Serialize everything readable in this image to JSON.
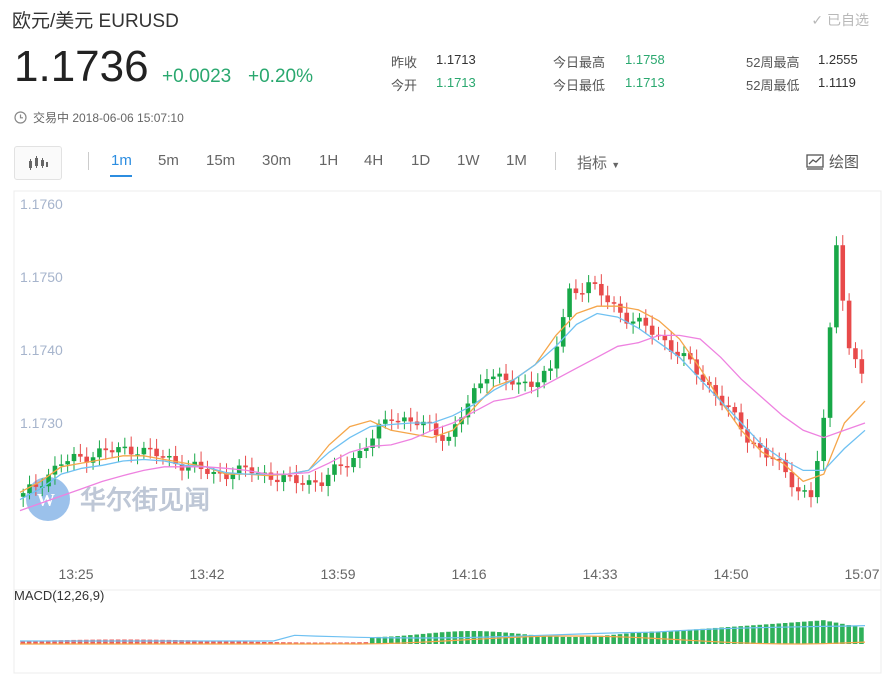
{
  "header": {
    "title": "欧元/美元 EURUSD",
    "selfpick_label": "已自选",
    "price": "1.1736",
    "change": "+0.0023",
    "change_pct": "+0.20%",
    "status": "交易中 2018-06-06 15:07:10"
  },
  "stats": {
    "prev_close_label": "昨收",
    "prev_close": "1.1713",
    "open_label": "今开",
    "open": "1.1713",
    "day_high_label": "今日最高",
    "day_high": "1.1758",
    "day_low_label": "今日最低",
    "day_low": "1.1713",
    "wk52_high_label": "52周最高",
    "wk52_high": "1.2555",
    "wk52_low_label": "52周最低",
    "wk52_low": "1.1119"
  },
  "toolbar": {
    "timeframes": [
      "1m",
      "5m",
      "15m",
      "30m",
      "1H",
      "4H",
      "1D",
      "1W",
      "1M"
    ],
    "active_timeframe": "1m",
    "indicator_label": "指标",
    "draw_label": "绘图"
  },
  "watermark": "华尔街见闻",
  "colors": {
    "up": "#e84a4a",
    "down": "#18a848",
    "accent": "#2c8de0",
    "positive_text": "#2aa86f",
    "ma_orange": "#f5a64a",
    "ma_blue": "#6fc1f2",
    "ma_pink": "#ee82e0"
  },
  "chart_data": {
    "type": "candlestick",
    "ylim": [
      1.1715,
      1.1762
    ],
    "y_ticks": [
      "1.1760",
      "1.1750",
      "1.1740",
      "1.1730"
    ],
    "x_ticks": [
      "13:25",
      "13:42",
      "13:59",
      "14:16",
      "14:33",
      "14:50",
      "15:07"
    ],
    "anchors": [
      [
        0,
        1.172
      ],
      [
        6,
        1.17245
      ],
      [
        12,
        1.1726
      ],
      [
        18,
        1.17265
      ],
      [
        23,
        1.1725
      ],
      [
        30,
        1.1723
      ],
      [
        36,
        1.17235
      ],
      [
        42,
        1.1722
      ],
      [
        47,
        1.1722
      ],
      [
        53,
        1.1726
      ],
      [
        58,
        1.1731
      ],
      [
        62,
        1.173
      ],
      [
        67,
        1.1728
      ],
      [
        73,
        1.1737
      ],
      [
        78,
        1.1735
      ],
      [
        83,
        1.1737
      ],
      [
        86,
        1.1748
      ],
      [
        89,
        1.1749
      ],
      [
        95,
        1.17445
      ],
      [
        100,
        1.1742
      ],
      [
        105,
        1.1738
      ],
      [
        110,
        1.1733
      ],
      [
        114,
        1.1728
      ],
      [
        118,
        1.1725
      ],
      [
        122,
        1.1721
      ],
      [
        124,
        1.172
      ],
      [
        126,
        1.173
      ],
      [
        128,
        1.1755
      ],
      [
        130,
        1.174
      ],
      [
        132,
        1.1737
      ]
    ],
    "ma_series": [
      {
        "color": "#f5a64a",
        "values": [
          1.17205,
          1.1722,
          1.1724,
          1.17245,
          1.1725,
          1.17255,
          1.17255,
          1.1725,
          1.17245,
          1.1724,
          1.1723,
          1.1723,
          1.17228,
          1.1723,
          1.17235,
          1.1727,
          1.17295,
          1.17303,
          1.1729,
          1.17285,
          1.1728,
          1.1729,
          1.1732,
          1.1735,
          1.1736,
          1.1738,
          1.1742,
          1.1745,
          1.1746,
          1.1746,
          1.17455,
          1.1744,
          1.17415,
          1.17375,
          1.1733,
          1.1729,
          1.1726,
          1.17245,
          1.1722,
          1.1723,
          1.173,
          1.1733
        ]
      },
      {
        "color": "#6fc1f2",
        "values": [
          1.17195,
          1.1721,
          1.1723,
          1.17238,
          1.17242,
          1.17248,
          1.1725,
          1.17248,
          1.17242,
          1.1724,
          1.17232,
          1.1723,
          1.1723,
          1.1723,
          1.17235,
          1.1726,
          1.1728,
          1.17295,
          1.17298,
          1.173,
          1.173,
          1.1731,
          1.17325,
          1.17345,
          1.1736,
          1.1738,
          1.17405,
          1.17435,
          1.1745,
          1.17445,
          1.1743,
          1.1741,
          1.1739,
          1.1736,
          1.1733,
          1.173,
          1.1727,
          1.1725,
          1.17235,
          1.17235,
          1.17265,
          1.1729
        ]
      },
      {
        "color": "#ee82e0",
        "values": [
          1.1718,
          1.1719,
          1.172,
          1.1721,
          1.1722,
          1.17228,
          1.17235,
          1.1724,
          1.1724,
          1.1724,
          1.17238,
          1.17235,
          1.1723,
          1.1723,
          1.17232,
          1.17245,
          1.1726,
          1.17268,
          1.1727,
          1.17278,
          1.1729,
          1.173,
          1.17315,
          1.1733,
          1.17335,
          1.17345,
          1.1736,
          1.17375,
          1.1739,
          1.17405,
          1.1741,
          1.1742,
          1.1742,
          1.17415,
          1.1739,
          1.1736,
          1.17335,
          1.1731,
          1.1729,
          1.1728,
          1.1729,
          1.173
        ]
      }
    ]
  },
  "macd": {
    "label": "MACD(12,26,9)"
  }
}
